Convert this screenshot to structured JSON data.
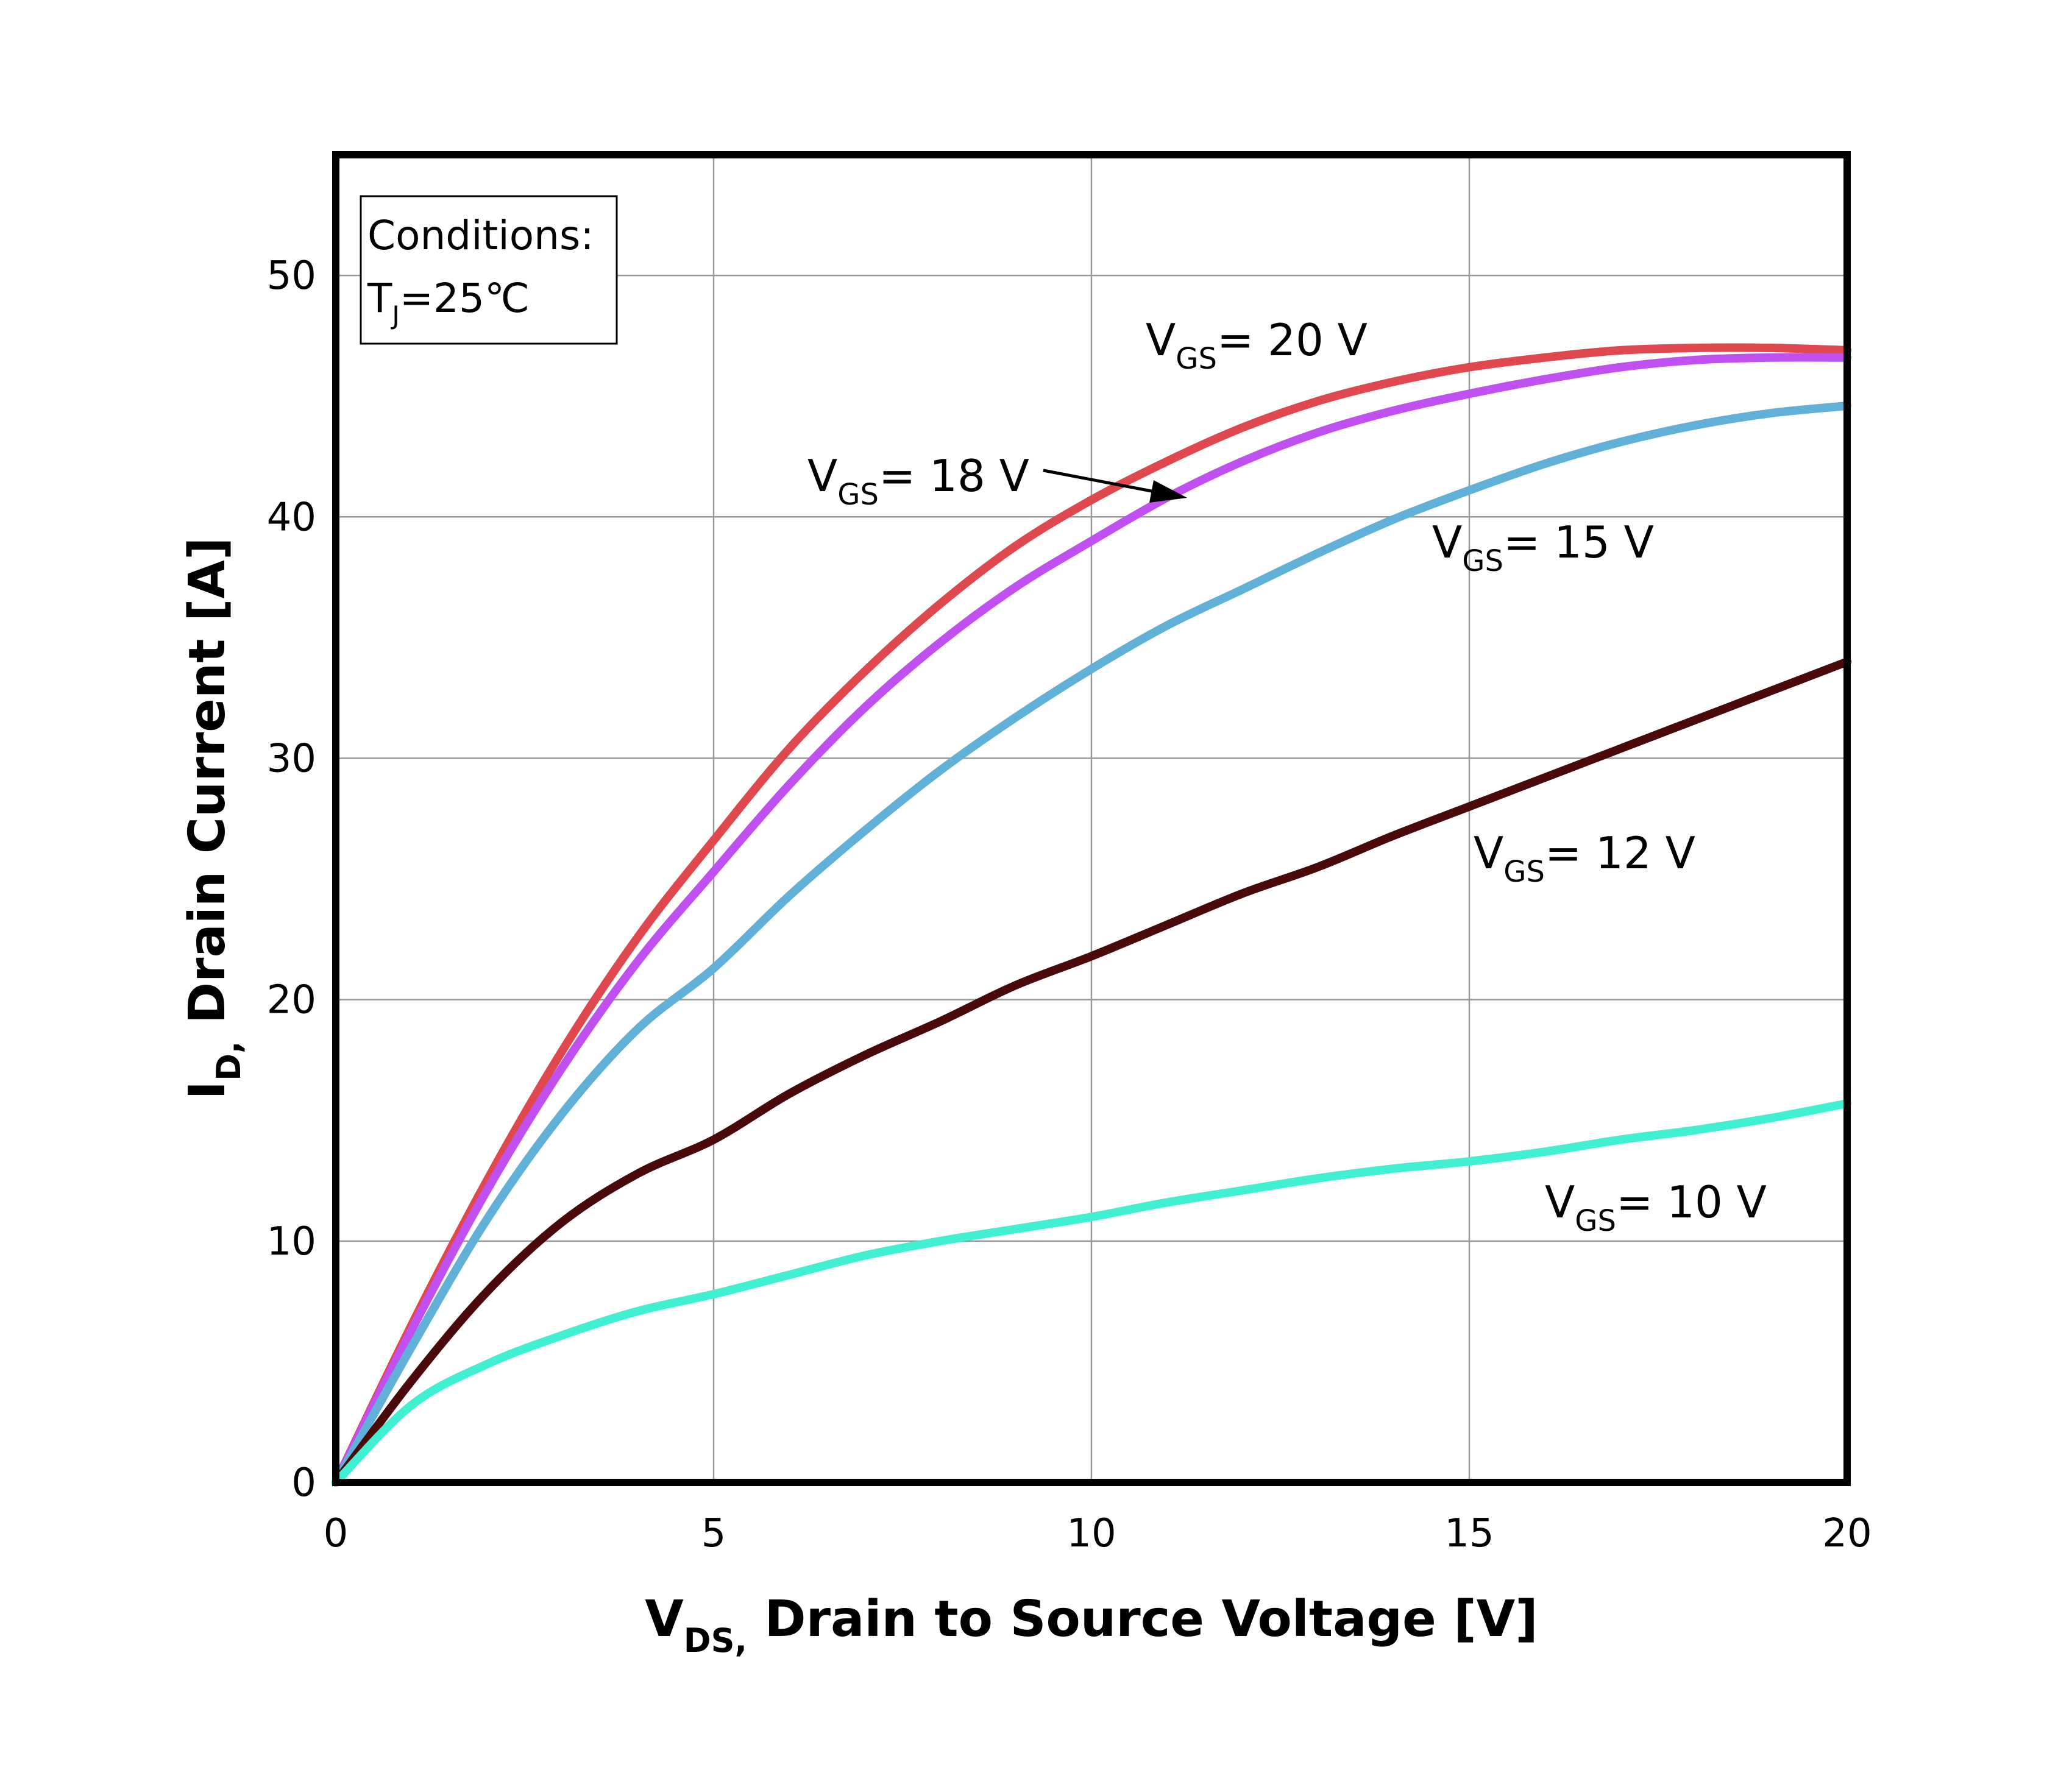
{
  "chart_data": {
    "type": "line",
    "title": "",
    "xlabel": {
      "main": "V",
      "sub": "DS,",
      "rest": " Drain to Source Voltage [V]"
    },
    "ylabel": {
      "main": "I",
      "sub": "D,",
      "rest": " Drain Current [A]"
    },
    "xlim": [
      0,
      20
    ],
    "ylim": [
      0,
      55
    ],
    "xticks": [
      0,
      5,
      10,
      15,
      20
    ],
    "yticks": [
      0,
      10,
      20,
      30,
      40,
      50
    ],
    "grid": true,
    "conditions": {
      "line1": "Conditions:",
      "line2_main": "T",
      "line2_sub": "J",
      "line2_rest": "=25℃"
    },
    "x": [
      0,
      1,
      2,
      3,
      4,
      5,
      6,
      7,
      8,
      9,
      10,
      11,
      12,
      13,
      14,
      15,
      16,
      17,
      18,
      19,
      20
    ],
    "series": [
      {
        "name": "VGS = 20 V",
        "label_main": "V",
        "label_sub": "GS",
        "label_rest": "= 20 V",
        "color": "#e04850",
        "values": [
          0,
          6.5,
          12.5,
          17.9,
          22.6,
          26.6,
          30.4,
          33.6,
          36.4,
          38.8,
          40.7,
          42.3,
          43.7,
          44.8,
          45.6,
          46.2,
          46.6,
          46.9,
          47.0,
          47.0,
          46.9
        ]
      },
      {
        "name": "VGS = 18 V",
        "label_main": "V",
        "label_sub": "GS",
        "label_rest": "= 18 V",
        "color": "#c050f0",
        "values": [
          0,
          6.3,
          12.1,
          17.2,
          21.6,
          25.3,
          28.9,
          32.1,
          34.8,
          37.1,
          39.0,
          40.8,
          42.3,
          43.5,
          44.4,
          45.1,
          45.7,
          46.2,
          46.5,
          46.6,
          46.6
        ]
      },
      {
        "name": "VGS = 15 V",
        "label_main": "V",
        "label_sub": "GS",
        "label_rest": "= 15 V",
        "color": "#60b0d8",
        "values": [
          0,
          5.6,
          10.9,
          15.3,
          18.8,
          21.3,
          24.3,
          27.0,
          29.5,
          31.7,
          33.7,
          35.5,
          37.0,
          38.5,
          39.9,
          41.1,
          42.2,
          43.1,
          43.8,
          44.3,
          44.6
        ]
      },
      {
        "name": "VGS = 12 V",
        "label_main": "V",
        "label_sub": "GS",
        "label_rest": "= 12 V",
        "color": "#4a0a0a",
        "values": [
          0,
          4.2,
          7.9,
          10.8,
          12.8,
          14.2,
          16.1,
          17.7,
          19.1,
          20.6,
          21.8,
          23.1,
          24.4,
          25.5,
          26.8,
          28.0,
          29.2,
          30.4,
          31.6,
          32.8,
          34.0
        ]
      },
      {
        "name": "VGS = 10 V",
        "label_main": "V",
        "label_sub": "GS",
        "label_rest": "= 10 V",
        "color": "#40f0d0",
        "values": [
          0,
          3.2,
          4.9,
          6.1,
          7.1,
          7.8,
          8.6,
          9.4,
          10.0,
          10.5,
          11.0,
          11.6,
          12.1,
          12.6,
          13.0,
          13.3,
          13.7,
          14.2,
          14.6,
          15.1,
          15.7
        ]
      }
    ]
  }
}
